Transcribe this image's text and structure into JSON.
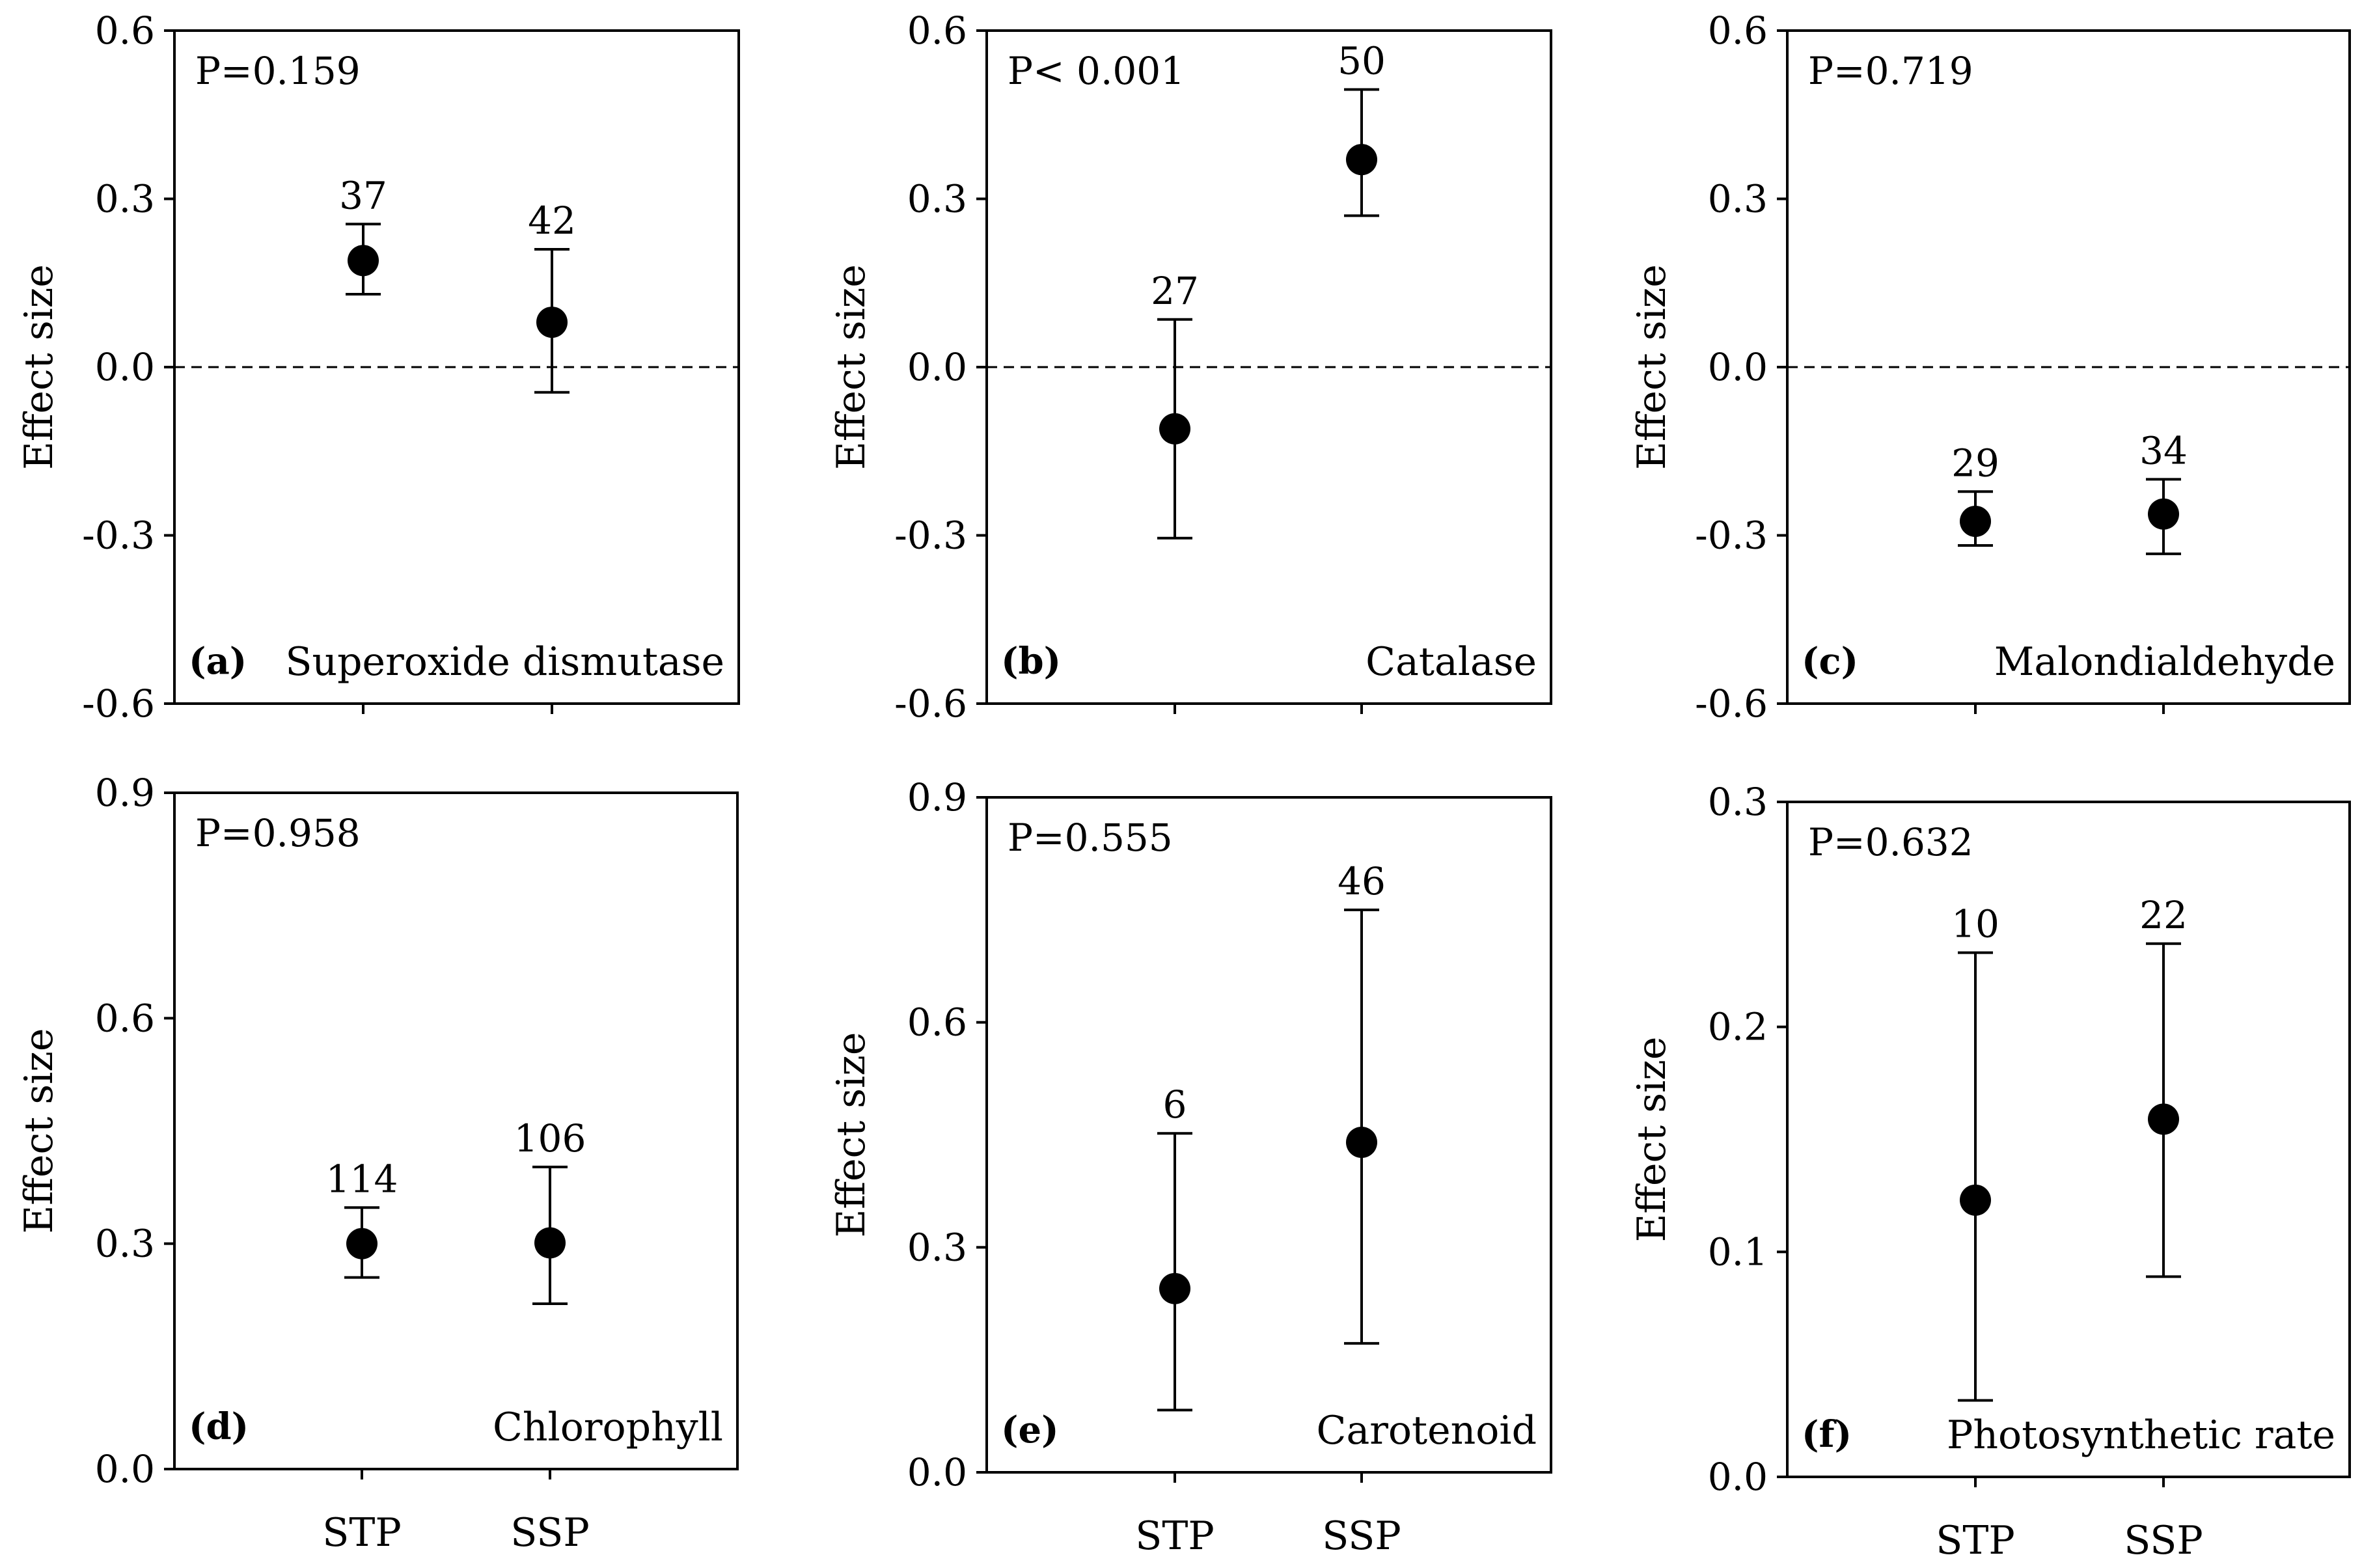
{
  "chart_data": [
    {
      "type": "scatter",
      "title": "Superoxide dismutase",
      "tag": "(a)",
      "pvalue_label": "P=0.159",
      "ylabel": "Effect size",
      "categories": [
        "STP",
        "SSP"
      ],
      "values": [
        0.19,
        0.08
      ],
      "ci_low": [
        0.13,
        -0.045
      ],
      "ci_high": [
        0.255,
        0.21
      ],
      "n": [
        "37",
        "42"
      ],
      "ylim": [
        -0.6,
        0.6
      ],
      "yticks": [
        -0.6,
        -0.3,
        0.0,
        0.3,
        0.6
      ],
      "ytick_labels": [
        "-0.6",
        "-0.3",
        "0.0",
        "0.3",
        "0.6"
      ],
      "reference_line": 0,
      "show_xlabels": false
    },
    {
      "type": "scatter",
      "title": "Catalase",
      "tag": "(b)",
      "pvalue_label": "P< 0.001",
      "ylabel": "Effect size",
      "categories": [
        "STP",
        "SSP"
      ],
      "values": [
        -0.11,
        0.37
      ],
      "ci_low": [
        -0.305,
        0.27
      ],
      "ci_high": [
        0.085,
        0.495
      ],
      "n": [
        "27",
        "50"
      ],
      "ylim": [
        -0.6,
        0.6
      ],
      "yticks": [
        -0.6,
        -0.3,
        0.0,
        0.3,
        0.6
      ],
      "ytick_labels": [
        "-0.6",
        "-0.3",
        "0.0",
        "0.3",
        "0.6"
      ],
      "reference_line": 0,
      "show_xlabels": false
    },
    {
      "type": "scatter",
      "title": "Malondialdehyde",
      "tag": "(c)",
      "pvalue_label": "P=0.719",
      "ylabel": "Effect size",
      "categories": [
        "STP",
        "SSP"
      ],
      "values": [
        -0.275,
        -0.262
      ],
      "ci_low": [
        -0.318,
        -0.333
      ],
      "ci_high": [
        -0.222,
        -0.2
      ],
      "n": [
        "29",
        "34"
      ],
      "ylim": [
        -0.6,
        0.6
      ],
      "yticks": [
        -0.6,
        -0.3,
        0.0,
        0.3,
        0.6
      ],
      "ytick_labels": [
        "-0.6",
        "-0.3",
        "0.0",
        "0.3",
        "0.6"
      ],
      "reference_line": 0,
      "show_xlabels": false
    },
    {
      "type": "scatter",
      "title": "Chlorophyll",
      "tag": "(d)",
      "pvalue_label": "P=0.958",
      "ylabel": "Effect size",
      "categories": [
        "STP",
        "SSP"
      ],
      "values": [
        0.3,
        0.301
      ],
      "ci_low": [
        0.255,
        0.22
      ],
      "ci_high": [
        0.348,
        0.402
      ],
      "n": [
        "114",
        "106"
      ],
      "ylim": [
        0.0,
        0.9
      ],
      "yticks": [
        0.0,
        0.3,
        0.6,
        0.9
      ],
      "ytick_labels": [
        "0.0",
        "0.3",
        "0.6",
        "0.9"
      ],
      "reference_line": null,
      "show_xlabels": true
    },
    {
      "type": "scatter",
      "title": "Carotenoid",
      "tag": "(e)",
      "pvalue_label": "P=0.555",
      "ylabel": "Effect size",
      "categories": [
        "STP",
        "SSP"
      ],
      "values": [
        0.245,
        0.44
      ],
      "ci_low": [
        0.083,
        0.172
      ],
      "ci_high": [
        0.452,
        0.75
      ],
      "n": [
        "6",
        "46"
      ],
      "ylim": [
        0.0,
        0.9
      ],
      "yticks": [
        0.0,
        0.3,
        0.6,
        0.9
      ],
      "ytick_labels": [
        "0.0",
        "0.3",
        "0.6",
        "0.9"
      ],
      "reference_line": null,
      "show_xlabels": true
    },
    {
      "type": "scatter",
      "title": "Photosynthetic rate",
      "tag": "(f)",
      "pvalue_label": "P=0.632",
      "ylabel": "Effect size",
      "categories": [
        "STP",
        "SSP"
      ],
      "values": [
        0.123,
        0.159
      ],
      "ci_low": [
        0.034,
        0.089
      ],
      "ci_high": [
        0.233,
        0.237
      ],
      "n": [
        "10",
        "22"
      ],
      "ylim": [
        0.0,
        0.3
      ],
      "yticks": [
        0.0,
        0.1,
        0.2,
        0.3
      ],
      "ytick_labels": [
        "0.0",
        "0.1",
        "0.2",
        "0.3"
      ],
      "reference_line": null,
      "show_xlabels": true
    }
  ]
}
